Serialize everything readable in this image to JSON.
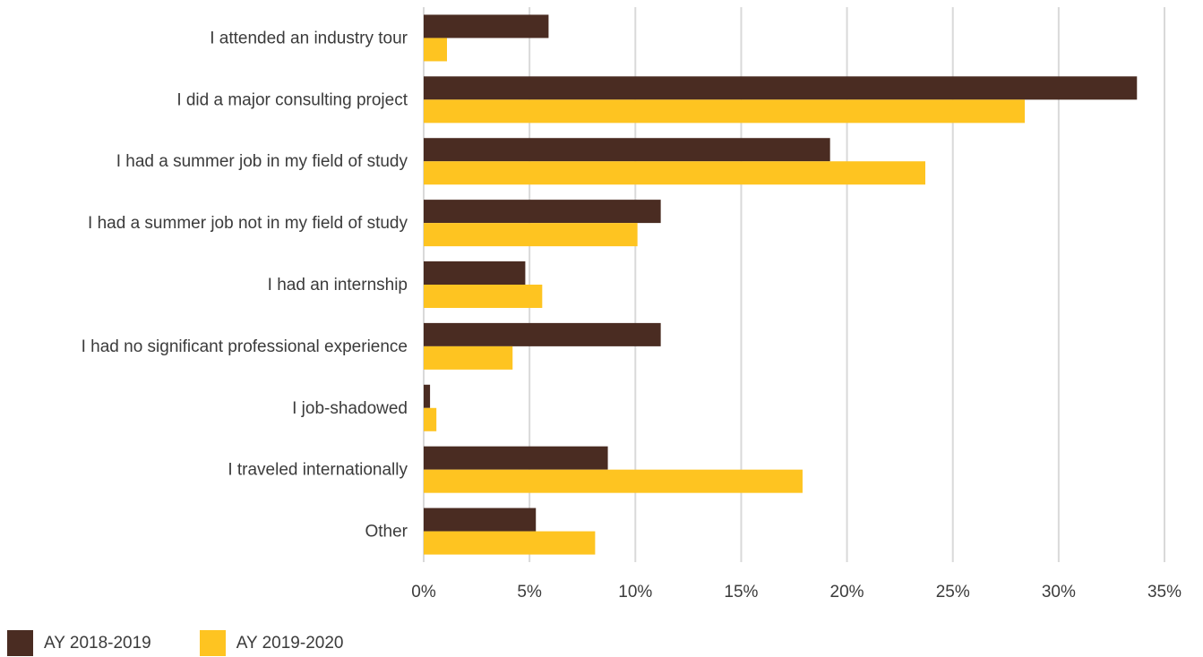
{
  "chart_data": {
    "type": "bar",
    "orientation": "horizontal",
    "title": "",
    "xlabel": "",
    "ylabel": "",
    "categories": [
      "I attended an industry tour",
      "I did a major consulting project",
      "I had a summer job in my field of study",
      "I had a summer job not in my field of study",
      "I had an internship",
      "I had no significant professional experience",
      "I job-shadowed",
      "I traveled internationally",
      "Other"
    ],
    "series": [
      {
        "name": "AY 2018-2019",
        "color": "#4a2c22",
        "values": [
          5.9,
          33.7,
          19.2,
          11.2,
          4.8,
          11.2,
          0.3,
          8.7,
          5.3
        ]
      },
      {
        "name": "AY 2019-2020",
        "color": "#fec421",
        "values": [
          1.1,
          28.4,
          23.7,
          10.1,
          5.6,
          4.2,
          0.6,
          17.9,
          8.1
        ]
      }
    ],
    "xlim": [
      0,
      35
    ],
    "ticks": [
      0,
      5,
      10,
      15,
      20,
      25,
      30,
      35
    ],
    "tick_labels": [
      "0%",
      "5%",
      "10%",
      "15%",
      "20%",
      "25%",
      "30%",
      "35%"
    ],
    "grid": "vertical",
    "legend_position": "bottom-left"
  }
}
